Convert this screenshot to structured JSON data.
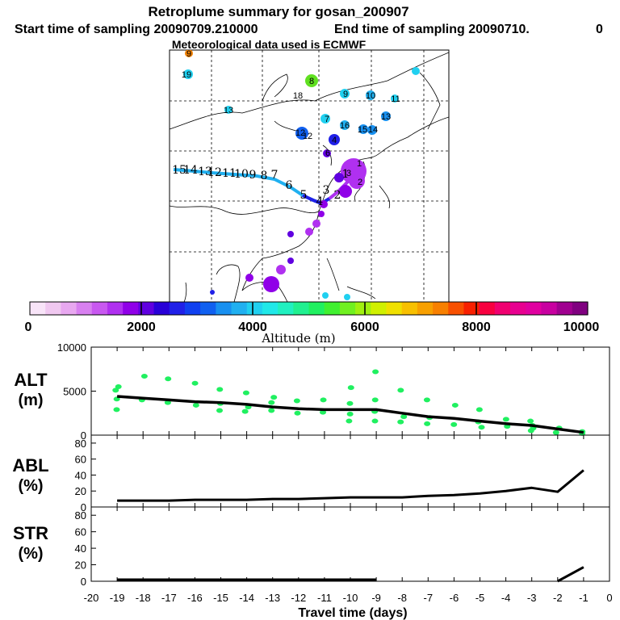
{
  "header": {
    "title": "Retroplume summary for gosan_200907",
    "start_label": "Start time of sampling 20090709.210000",
    "end_label": "End time of sampling 20090710.",
    "end_trunc": "0",
    "met_label": "Meteorological data used is ECMWF"
  },
  "colorbar": {
    "ticks": [
      "0",
      "2000",
      "4000",
      "6000",
      "8000",
      "10000"
    ],
    "label": "Altitude (m)",
    "colors": [
      "#f8e4f8",
      "#f0c8f0",
      "#e8a8f0",
      "#d880f0",
      "#c858f0",
      "#b030f0",
      "#9000e8",
      "#6000e0",
      "#2800d8",
      "#2020e8",
      "#1040f0",
      "#1060f0",
      "#1890f0",
      "#20b0f0",
      "#20d0f0",
      "#20e8e8",
      "#20f0c0",
      "#20f090",
      "#20f060",
      "#40f030",
      "#70f020",
      "#a0f010",
      "#d0f000",
      "#f0e000",
      "#f8c000",
      "#f8a000",
      "#f88000",
      "#f85000",
      "#f82000",
      "#f80040",
      "#f00070",
      "#e80090",
      "#e000a0",
      "#c800a0",
      "#a00090",
      "#800080"
    ]
  },
  "map": {
    "plume_labels": [
      "15",
      "14",
      "13",
      "12",
      "11",
      "10",
      "9",
      "8",
      "7",
      "6",
      "5",
      "4",
      "3",
      "2",
      "1"
    ],
    "cluster_labels": [
      {
        "t": "9",
        "c": "#f08000"
      },
      {
        "t": "19",
        "c": "#20d0f0"
      },
      {
        "t": "8",
        "c": "#60e020"
      },
      {
        "t": "12",
        "c": "#20d0f0"
      },
      {
        "t": "13",
        "c": "#20d0f0"
      },
      {
        "t": "18",
        "c": "#20d0f0"
      },
      {
        "t": "9",
        "c": "#20d0f0"
      },
      {
        "t": "10",
        "c": "#20b0f0"
      },
      {
        "t": "11",
        "c": "#20d0f0"
      },
      {
        "t": "7",
        "c": "#20d0f0"
      },
      {
        "t": "13",
        "c": "#1890f0"
      },
      {
        "t": "16",
        "c": "#20b0f0"
      },
      {
        "t": "15",
        "c": "#1890f0"
      },
      {
        "t": "14",
        "c": "#1890f0"
      },
      {
        "t": "12",
        "c": "#1060f0"
      },
      {
        "t": "4",
        "c": "#2020e8"
      },
      {
        "t": "6",
        "c": "#b030f0"
      },
      {
        "t": "3",
        "c": "#b030f0"
      },
      {
        "t": "2",
        "c": "#b030f0"
      },
      {
        "t": "1",
        "c": "#b030f0"
      }
    ]
  },
  "panels": {
    "alt_label": "ALT",
    "alt_unit": "(m)",
    "abl_label": "ABL",
    "abl_unit": "(%)",
    "str_label": "STR",
    "str_unit": "(%)",
    "xlabel": "Travel time (days)"
  },
  "chart_data": [
    {
      "type": "line",
      "name": "ALT",
      "x": [
        -19,
        -18,
        -17,
        -16,
        -15,
        -14,
        -13,
        -12,
        -11,
        -10,
        -9,
        -8,
        -7,
        -6,
        -5,
        -4,
        -3,
        -2,
        -1
      ],
      "values": [
        4400,
        4200,
        4000,
        3800,
        3700,
        3500,
        3200,
        3000,
        2900,
        2900,
        2900,
        2500,
        2100,
        1900,
        1600,
        1300,
        1100,
        700,
        300
      ],
      "ylim": [
        0,
        10000
      ],
      "yticks": [
        "0",
        "5000",
        "10000"
      ],
      "xlim": [
        -20,
        0
      ],
      "scatter": [
        {
          "x": -19,
          "y": 5500
        },
        {
          "x": -19,
          "y": 5100
        },
        {
          "x": -19,
          "y": 4100
        },
        {
          "x": -19,
          "y": 2900
        },
        {
          "x": -18,
          "y": 6700
        },
        {
          "x": -18,
          "y": 4000
        },
        {
          "x": -17,
          "y": 6400
        },
        {
          "x": -17,
          "y": 3700
        },
        {
          "x": -16,
          "y": 5900
        },
        {
          "x": -16,
          "y": 3400
        },
        {
          "x": -15,
          "y": 5200
        },
        {
          "x": -15,
          "y": 3600
        },
        {
          "x": -15,
          "y": 2800
        },
        {
          "x": -14,
          "y": 4800
        },
        {
          "x": -14,
          "y": 3200
        },
        {
          "x": -14,
          "y": 2700
        },
        {
          "x": -13,
          "y": 4300
        },
        {
          "x": -13,
          "y": 3700
        },
        {
          "x": -13,
          "y": 2800
        },
        {
          "x": -12,
          "y": 3900
        },
        {
          "x": -12,
          "y": 2500
        },
        {
          "x": -11,
          "y": 4000
        },
        {
          "x": -11,
          "y": 2600
        },
        {
          "x": -10,
          "y": 5400
        },
        {
          "x": -10,
          "y": 3600
        },
        {
          "x": -10,
          "y": 2400
        },
        {
          "x": -10,
          "y": 1600
        },
        {
          "x": -9,
          "y": 7200
        },
        {
          "x": -9,
          "y": 4000
        },
        {
          "x": -9,
          "y": 2700
        },
        {
          "x": -9,
          "y": 1600
        },
        {
          "x": -8,
          "y": 5100
        },
        {
          "x": -8,
          "y": 2100
        },
        {
          "x": -8,
          "y": 1500
        },
        {
          "x": -7,
          "y": 4000
        },
        {
          "x": -7,
          "y": 2000
        },
        {
          "x": -7,
          "y": 1300
        },
        {
          "x": -6,
          "y": 3400
        },
        {
          "x": -6,
          "y": 1200
        },
        {
          "x": -5,
          "y": 2900
        },
        {
          "x": -5,
          "y": 1500
        },
        {
          "x": -5,
          "y": 900
        },
        {
          "x": -4,
          "y": 1800
        },
        {
          "x": -4,
          "y": 1000
        },
        {
          "x": -3,
          "y": 1600
        },
        {
          "x": -3,
          "y": 1100
        },
        {
          "x": -3,
          "y": 800
        },
        {
          "x": -3,
          "y": 500
        },
        {
          "x": -2,
          "y": 800
        },
        {
          "x": -2,
          "y": 300
        },
        {
          "x": -1,
          "y": 400
        },
        {
          "x": -1,
          "y": 200
        }
      ]
    },
    {
      "type": "line",
      "name": "ABL",
      "x": [
        -19,
        -18,
        -17,
        -16,
        -15,
        -14,
        -13,
        -12,
        -11,
        -10,
        -9,
        -8,
        -7,
        -6,
        -5,
        -4,
        -3,
        -2,
        -1
      ],
      "values": [
        8,
        8,
        8,
        9,
        9,
        9,
        10,
        10,
        11,
        12,
        12,
        12,
        14,
        15,
        17,
        20,
        24,
        19,
        46
      ],
      "ylim": [
        0,
        90
      ],
      "yticks": [
        "0",
        "20",
        "40",
        "60",
        "80"
      ]
    },
    {
      "type": "line",
      "name": "STR",
      "x": [
        -19,
        -18,
        -17,
        -16,
        -15,
        -14,
        -13,
        -12,
        -11,
        -10,
        -9,
        -8,
        -7,
        -6,
        -5,
        -4,
        -3,
        -2,
        -1
      ],
      "values": [
        2,
        2,
        2,
        2,
        2,
        2,
        2,
        2,
        2,
        2,
        2,
        null,
        null,
        null,
        null,
        null,
        null,
        0,
        17
      ],
      "ylim": [
        0,
        90
      ],
      "yticks": [
        "0",
        "20",
        "40",
        "60",
        "80"
      ]
    },
    {
      "type": "axis",
      "name": "travel-time-axis",
      "xticks": [
        "-20",
        "-19",
        "-18",
        "-17",
        "-16",
        "-15",
        "-14",
        "-13",
        "-12",
        "-11",
        "-10",
        "-9",
        "-8",
        "-7",
        "-6",
        "-5",
        "-4",
        "-3",
        "-2",
        "-1",
        "0"
      ],
      "xlabel": "Travel time (days)"
    }
  ]
}
